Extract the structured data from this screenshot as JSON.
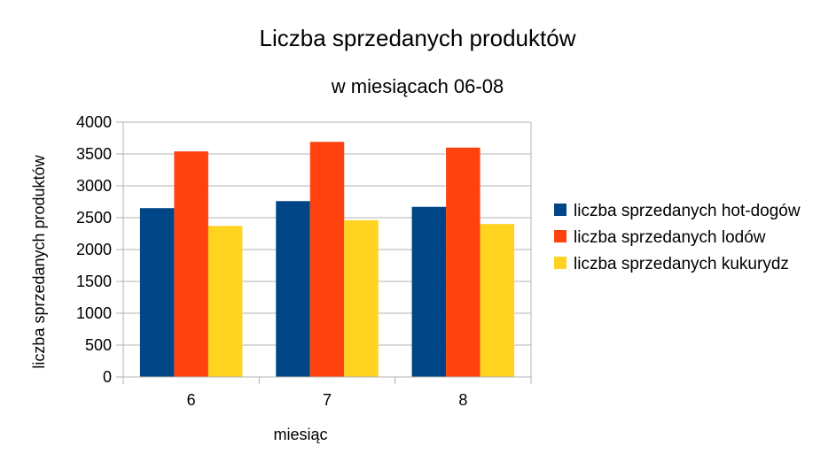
{
  "chart_data": {
    "type": "bar",
    "title": "Liczba sprzedanych produktów",
    "subtitle": "w miesiącach 06-08",
    "xlabel": "miesiąc",
    "ylabel": "liczba sprzedanych produktów",
    "categories": [
      "6",
      "7",
      "8"
    ],
    "ylim": [
      0,
      4000
    ],
    "yticks": [
      0,
      500,
      1000,
      1500,
      2000,
      2500,
      3000,
      3500,
      4000
    ],
    "yticks_labels": [
      "0",
      "500",
      "1000",
      "1500",
      "2000",
      "2500",
      "3000",
      "3500",
      "4000"
    ],
    "grid": true,
    "legend_position": "right",
    "series": [
      {
        "name": "liczba sprzedanych hot-dogów",
        "color": "#004586",
        "values": [
          2650,
          2760,
          2670
        ]
      },
      {
        "name": "liczba sprzedanych lodów",
        "color": "#ff420e",
        "values": [
          3540,
          3690,
          3600
        ]
      },
      {
        "name": "liczba sprzedanych kukurydz",
        "color": "#ffd320",
        "values": [
          2370,
          2460,
          2400
        ]
      }
    ]
  }
}
